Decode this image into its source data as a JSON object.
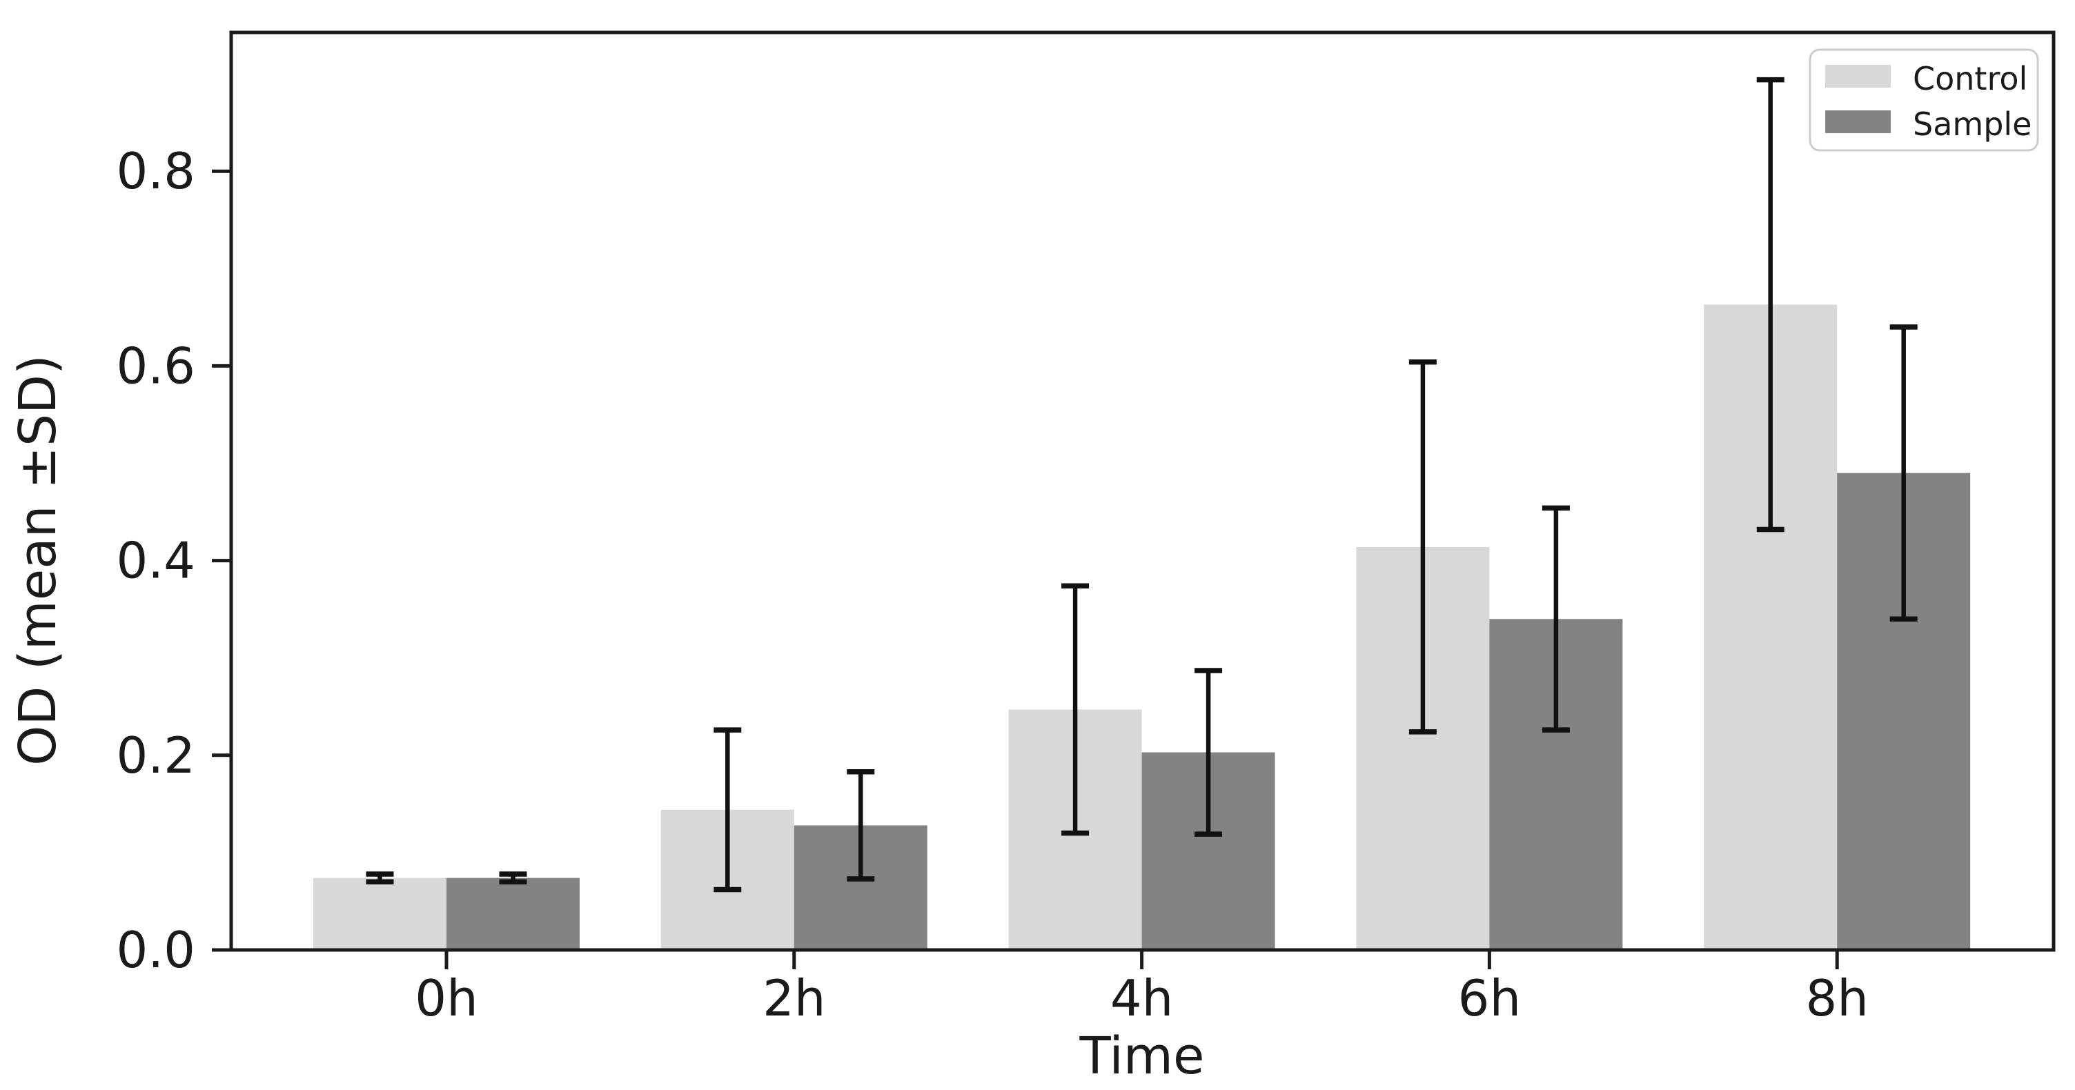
{
  "figure": {
    "background": "#ffffff",
    "text_color": "#1a1a1a",
    "spine_color": "#1a1a1a",
    "error_bar_color": "#111111"
  },
  "chart_data": {
    "type": "bar",
    "title": "",
    "xlabel": "Time",
    "ylabel": "OD (mean ±SD)",
    "categories": [
      "0h",
      "2h",
      "4h",
      "6h",
      "8h"
    ],
    "series": [
      {
        "name": "Control",
        "color": "#d8d8d8",
        "values": [
          0.074,
          0.144,
          0.247,
          0.414,
          0.663
        ],
        "sd": [
          0.004,
          0.082,
          0.127,
          0.19,
          0.231
        ]
      },
      {
        "name": "Sample",
        "color": "#838383",
        "values": [
          0.074,
          0.128,
          0.203,
          0.34,
          0.49
        ],
        "sd": [
          0.004,
          0.055,
          0.084,
          0.114,
          0.15
        ]
      }
    ],
    "error_bars": true,
    "yticks": [
      0.0,
      0.2,
      0.4,
      0.6,
      0.8
    ],
    "ytick_labels": [
      "0.0",
      "0.2",
      "0.4",
      "0.6",
      "0.8"
    ],
    "ylim": [
      0,
      0.9426
    ],
    "grid": false,
    "legend_position": "upper right"
  },
  "legend": {
    "items": [
      {
        "label": "Control",
        "color": "#d8d8d8"
      },
      {
        "label": "Sample",
        "color": "#838383"
      }
    ]
  }
}
